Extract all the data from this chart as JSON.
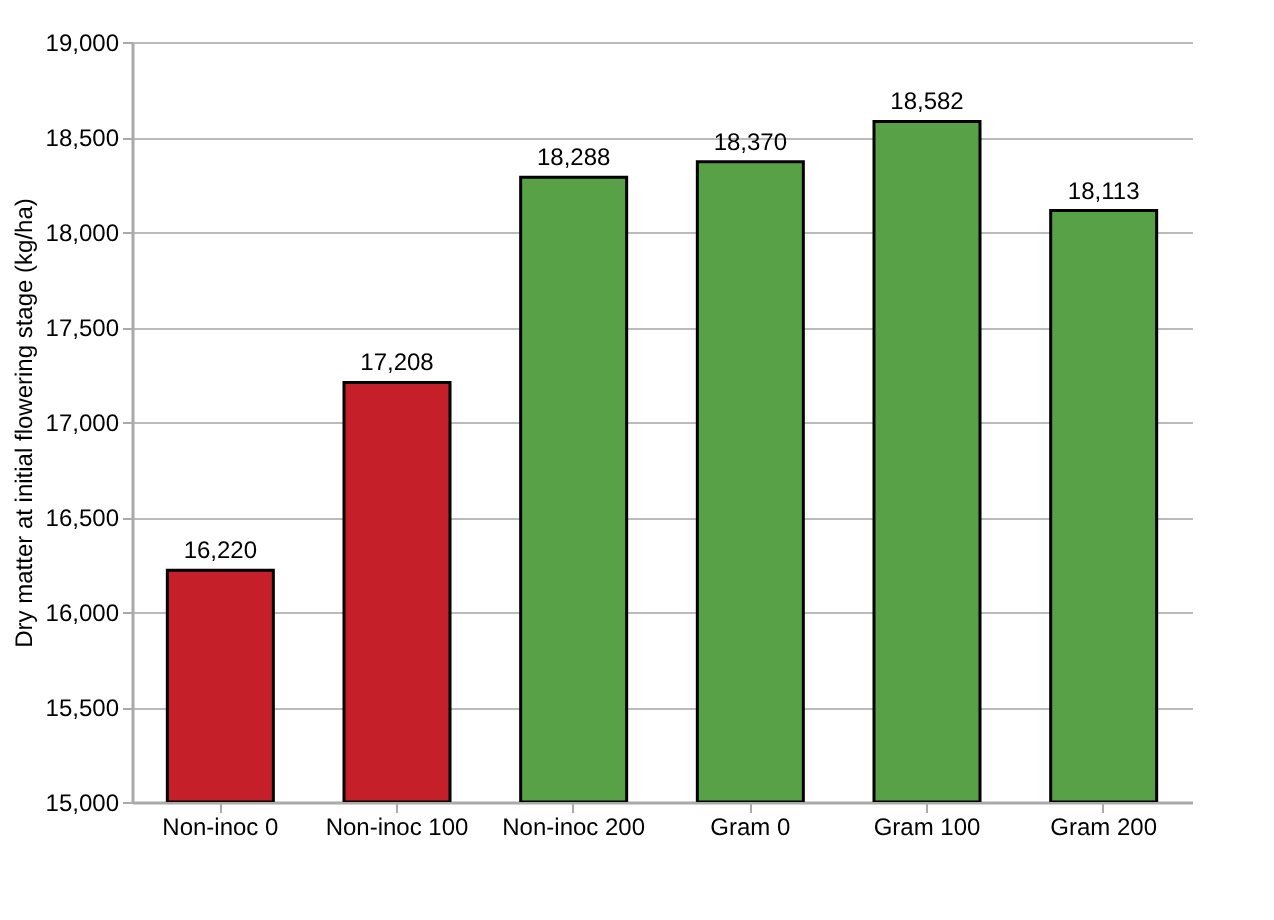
{
  "chart_data": {
    "type": "bar",
    "ylabel": "Dry matter at initial flowering stage (kg/ha)",
    "categories": [
      "Non-inoc 0",
      "Non-inoc 100",
      "Non-inoc 200",
      "Gram 0",
      "Gram 100",
      "Gram 200"
    ],
    "values": [
      16220,
      17208,
      18288,
      18370,
      18582,
      18113
    ],
    "value_labels": [
      "16,220",
      "17,208",
      "18,288",
      "18,370",
      "18,582",
      "18,113"
    ],
    "colors": [
      "#c5202a",
      "#c5202a",
      "#58a147",
      "#58a147",
      "#58a147",
      "#58a147"
    ],
    "ylim": [
      15000,
      19000
    ],
    "yticks": [
      {
        "value": 15000,
        "label": "15,000"
      },
      {
        "value": 15500,
        "label": "15,500"
      },
      {
        "value": 16000,
        "label": "16,000"
      },
      {
        "value": 16500,
        "label": "16,500"
      },
      {
        "value": 17000,
        "label": "17,000"
      },
      {
        "value": 17500,
        "label": "17,500"
      },
      {
        "value": 18000,
        "label": "18,000"
      },
      {
        "value": 18500,
        "label": "18,500"
      },
      {
        "value": 19000,
        "label": "19,000"
      }
    ],
    "grid": "y"
  }
}
